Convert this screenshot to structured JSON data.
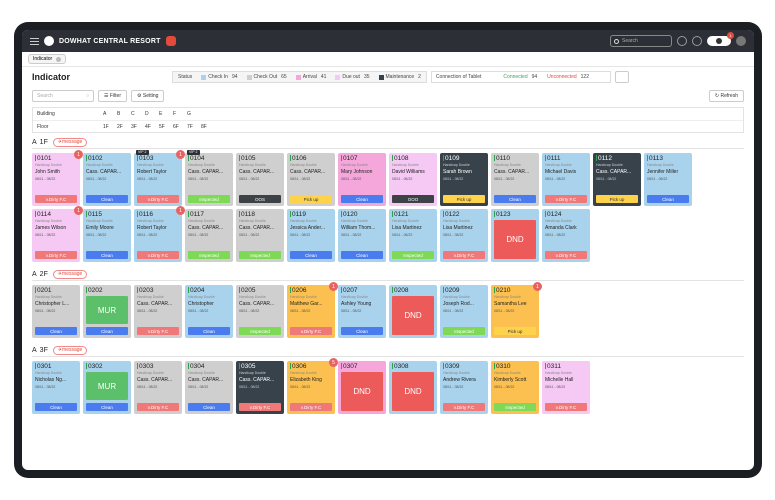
{
  "app": {
    "resort_name": "DOWHAT CENTRAL RESORT",
    "search_placeholder": "Search",
    "notification_count": "1"
  },
  "tab": {
    "label": "Indicator"
  },
  "page": {
    "title": "Indicator"
  },
  "status": {
    "label": "Status",
    "items": [
      {
        "label": "Check In",
        "count": "94",
        "color": "#a9d3ec"
      },
      {
        "label": "Check Out",
        "count": "65",
        "color": "#cfcfcf"
      },
      {
        "label": "Arrival",
        "count": "41",
        "color": "#f5a7db"
      },
      {
        "label": "Due out",
        "count": "35",
        "color": "#f5c9f4"
      },
      {
        "label": "Maintenance",
        "count": "2",
        "color": "#37424a"
      }
    ]
  },
  "tablet": {
    "label": "Connection of Tablet",
    "connected_label": "Connected",
    "connected_count": "94",
    "unconnected_label": "Unconnected",
    "unconnected_count": "122"
  },
  "controls": {
    "search_placeholder": "Search",
    "filter_label": "Filter",
    "setting_label": "Setting",
    "refresh_label": "Refresh"
  },
  "filters": {
    "building_label": "Building",
    "buildings": [
      "A",
      "B",
      "C",
      "D",
      "E",
      "F",
      "G"
    ],
    "floor_label": "Floor",
    "floors": [
      "1F",
      "2F",
      "3F",
      "4F",
      "5F",
      "6F",
      "7F",
      "8F"
    ]
  },
  "colors": {
    "blue": "#a9d3ec",
    "gray": "#cfcfcf",
    "pink": "#f5a7db",
    "lpink": "#f5c9f4",
    "dark": "#37424a",
    "orange": "#fbc04f",
    "clean": "#4a7cf0",
    "dirty": "#f07878",
    "inspected": "#7ed957",
    "ooo": "#3d4246",
    "pickup": "#ffd24c",
    "dnd": "#ec5a5a",
    "mur": "#5cc06a"
  },
  "floors_data": [
    {
      "building": "A",
      "floor": "1F",
      "message_label": "message",
      "rooms": [
        {
          "number": "0101",
          "bg": "lpink",
          "type": "Handicap Double",
          "guest": "John Smith",
          "dates": "08/11 - 08/22",
          "status": "v.Dirty F.C",
          "status_color": "dirty",
          "badge": "1"
        },
        {
          "number": "0102",
          "bg": "blue",
          "type": "Handicap Double",
          "guest": "Cass. CAPAR...",
          "dates": "08/11 - 08/22",
          "status": "Clean",
          "status_color": "clean"
        },
        {
          "number": "0103",
          "bg": "blue",
          "type": "Handicap Double",
          "guest": "Robert Taylor",
          "dates": "08/11 - 08/22",
          "status": "v.Dirty F.C",
          "status_color": "dirty",
          "badge": "1",
          "vip": "VIP 2"
        },
        {
          "number": "0104",
          "bg": "gray",
          "type": "Handicap Double",
          "guest": "Cass. CAPAR...",
          "dates": "08/11 - 08/22",
          "status": "Inspected",
          "status_color": "inspected",
          "vip": "VIP 2"
        },
        {
          "number": "0105",
          "bg": "gray",
          "type": "Handicap Double",
          "guest": "Cass. CAPAR...",
          "dates": "08/11 - 08/22",
          "status": "OOS",
          "status_color": "ooo"
        },
        {
          "number": "0106",
          "bg": "gray",
          "type": "Handicap Double",
          "guest": "Cass. CAPAR...",
          "dates": "08/11 - 08/22",
          "status": "Pick up",
          "status_color": "pickup"
        },
        {
          "number": "0107",
          "bg": "pink",
          "type": "Handicap Double",
          "guest": "Mary Johnson",
          "dates": "08/11 - 08/22",
          "status": "Clean",
          "status_color": "clean"
        },
        {
          "number": "0108",
          "bg": "lpink",
          "type": "Handicap Double",
          "guest": "David Williams",
          "dates": "08/11 - 08/22",
          "status": "OOO",
          "status_color": "ooo"
        },
        {
          "number": "0109",
          "bg": "dark",
          "type": "Handicap Double",
          "guest": "Sarah Brown",
          "dates": "08/11 - 08/22",
          "status": "Pick up",
          "status_color": "pickup"
        },
        {
          "number": "0110",
          "bg": "gray",
          "type": "Handicap Double",
          "guest": "Cass. CAPAR...",
          "dates": "08/11 - 08/22",
          "status": "Clean",
          "status_color": "clean"
        },
        {
          "number": "0111",
          "bg": "blue",
          "type": "Handicap Double",
          "guest": "Michael Davis",
          "dates": "08/11 - 08/22",
          "status": "v.Dirty F.C",
          "status_color": "dirty"
        },
        {
          "number": "0112",
          "bg": "dark",
          "type": "Handicap Double",
          "guest": "Cass. CAPAR...",
          "dates": "08/11 - 08/22",
          "status": "Pick up",
          "status_color": "pickup"
        },
        {
          "number": "0113",
          "bg": "blue",
          "type": "Handicap Double",
          "guest": "Jennifer Miller",
          "dates": "08/11 - 08/22",
          "status": "Clean",
          "status_color": "clean"
        },
        {
          "number": "0114",
          "bg": "lpink",
          "type": "Handicap Double",
          "guest": "James Wilson",
          "dates": "08/11 - 08/22",
          "status": "v.Dirty F.C",
          "status_color": "dirty",
          "badge": "1"
        },
        {
          "number": "0115",
          "bg": "blue",
          "type": "Handicap Double",
          "guest": "Emily Moore",
          "dates": "08/11 - 08/22",
          "status": "Clean",
          "status_color": "clean"
        },
        {
          "number": "0116",
          "bg": "blue",
          "type": "Handicap Double",
          "guest": "Robert Taylor",
          "dates": "08/11 - 08/22",
          "status": "v.Dirty F.C",
          "status_color": "dirty",
          "badge": "1"
        },
        {
          "number": "0117",
          "bg": "gray",
          "type": "Handicap Double",
          "guest": "Cass. CAPAR...",
          "dates": "08/11 - 08/22",
          "status": "Inspected",
          "status_color": "inspected"
        },
        {
          "number": "0118",
          "bg": "gray",
          "type": "Handicap Double",
          "guest": "Cass. CAPAR...",
          "dates": "08/11 - 08/22",
          "status": "Inspected",
          "status_color": "inspected"
        },
        {
          "number": "0119",
          "bg": "blue",
          "type": "Handicap Double",
          "guest": "Jessica Ander...",
          "dates": "08/11 - 08/22",
          "status": "Clean",
          "status_color": "clean"
        },
        {
          "number": "0120",
          "bg": "blue",
          "type": "Handicap Double",
          "guest": "William Thom...",
          "dates": "08/11 - 08/22",
          "status": "Clean",
          "status_color": "clean"
        },
        {
          "number": "0121",
          "bg": "blue",
          "type": "Handicap Double",
          "guest": "Lisa Martinez",
          "dates": "08/11 - 08/22",
          "status": "Inspected",
          "status_color": "inspected"
        },
        {
          "number": "0122",
          "bg": "blue",
          "type": "Handicap Double",
          "guest": "Lisa Martinez",
          "dates": "08/11 - 08/22",
          "status": "v.Dirty F.C",
          "status_color": "dirty"
        },
        {
          "number": "0123",
          "bg": "blue",
          "big": "DND",
          "big_color": "dnd"
        },
        {
          "number": "0124",
          "bg": "blue",
          "type": "Handicap Double",
          "guest": "Amanda Clark",
          "dates": "08/11 - 08/22",
          "status": "v.Dirty F.C",
          "status_color": "dirty"
        }
      ]
    },
    {
      "building": "A",
      "floor": "2F",
      "message_label": "message",
      "rooms": [
        {
          "number": "0201",
          "bg": "gray",
          "type": "Handicap Double",
          "guest": "Christopher L...",
          "dates": "08/11 - 08/22",
          "status": "Clean",
          "status_color": "clean"
        },
        {
          "number": "0202",
          "bg": "gray",
          "big": "MUR",
          "big_color": "mur",
          "status": "Clean",
          "status_color": "clean"
        },
        {
          "number": "0203",
          "bg": "gray",
          "type": "Handicap Double",
          "guest": "Cass. CAPAR...",
          "dates": "08/11 - 08/22",
          "status": "v.Dirty F.C",
          "status_color": "dirty"
        },
        {
          "number": "0204",
          "bg": "blue",
          "type": "Handicap Double",
          "guest": "Christopher",
          "dates": "08/11 - 08/22",
          "status": "Clean",
          "status_color": "clean"
        },
        {
          "number": "0205",
          "bg": "gray",
          "type": "Handicap Double",
          "guest": "Cass. CAPAR...",
          "dates": "08/11 - 08/22",
          "status": "Inspected",
          "status_color": "inspected"
        },
        {
          "number": "0206",
          "bg": "orange",
          "type": "Handicap Double",
          "guest": "Matthew Gar...",
          "dates": "08/11 - 08/22",
          "status": "v.Dirty F.C",
          "status_color": "dirty",
          "badge": "1"
        },
        {
          "number": "0207",
          "bg": "blue",
          "type": "Handicap Double",
          "guest": "Ashley Young",
          "dates": "08/11 - 08/22",
          "status": "Clean",
          "status_color": "clean"
        },
        {
          "number": "0208",
          "bg": "blue",
          "big": "DND",
          "big_color": "dnd"
        },
        {
          "number": "0209",
          "bg": "blue",
          "type": "Handicap Double",
          "guest": "Joseph Rod...",
          "dates": "08/11 - 08/22",
          "status": "Inspected",
          "status_color": "inspected"
        },
        {
          "number": "0210",
          "bg": "orange",
          "type": "Handicap Double",
          "guest": "Samantha Lee",
          "dates": "08/11 - 08/22",
          "status": "Pick up",
          "status_color": "pickup",
          "badge": "1"
        }
      ]
    },
    {
      "building": "A",
      "floor": "3F",
      "message_label": "message",
      "rooms": [
        {
          "number": "0301",
          "bg": "blue",
          "type": "Handicap Double",
          "guest": "Nicholas Ng...",
          "dates": "08/11 - 08/22",
          "status": "Clean",
          "status_color": "clean"
        },
        {
          "number": "0302",
          "bg": "blue",
          "big": "MUR",
          "big_color": "mur",
          "status": "Clean",
          "status_color": "clean"
        },
        {
          "number": "0303",
          "bg": "gray",
          "type": "Handicap Double",
          "guest": "Cass. CAPAR...",
          "dates": "08/11 - 08/22",
          "status": "v.Dirty F.C",
          "status_color": "dirty"
        },
        {
          "number": "0304",
          "bg": "gray",
          "type": "Handicap Double",
          "guest": "Cass. CAPAR...",
          "dates": "08/11 - 08/22",
          "status": "Clean",
          "status_color": "clean"
        },
        {
          "number": "0305",
          "bg": "dark",
          "type": "Handicap Double",
          "guest": "Cass. CAPAR...",
          "dates": "08/11 - 08/22",
          "status": "v.Dirty F.C",
          "status_color": "dirty"
        },
        {
          "number": "0306",
          "bg": "orange",
          "type": "Handicap Double",
          "guest": "Elizabeth King",
          "dates": "08/11 - 08/22",
          "status": "v.Dirty F.C",
          "status_color": "dirty",
          "badge": "5"
        },
        {
          "number": "0307",
          "bg": "pink",
          "big": "DND",
          "big_color": "dnd"
        },
        {
          "number": "0308",
          "bg": "blue",
          "big": "DND",
          "big_color": "dnd"
        },
        {
          "number": "0309",
          "bg": "blue",
          "type": "Handicap Double",
          "guest": "Andrew Rivera",
          "dates": "08/11 - 08/22",
          "status": "v.Dirty F.C",
          "status_color": "dirty"
        },
        {
          "number": "0310",
          "bg": "orange",
          "type": "Handicap Double",
          "guest": "Kimberly Scott",
          "dates": "08/11 - 08/22",
          "status": "Inspected",
          "status_color": "inspected"
        },
        {
          "number": "0311",
          "bg": "lpink",
          "type": "Handicap Double",
          "guest": "Michelle Hall",
          "dates": "08/11 - 08/22",
          "status": "v.Dirty F.C",
          "status_color": "dirty"
        }
      ]
    }
  ]
}
